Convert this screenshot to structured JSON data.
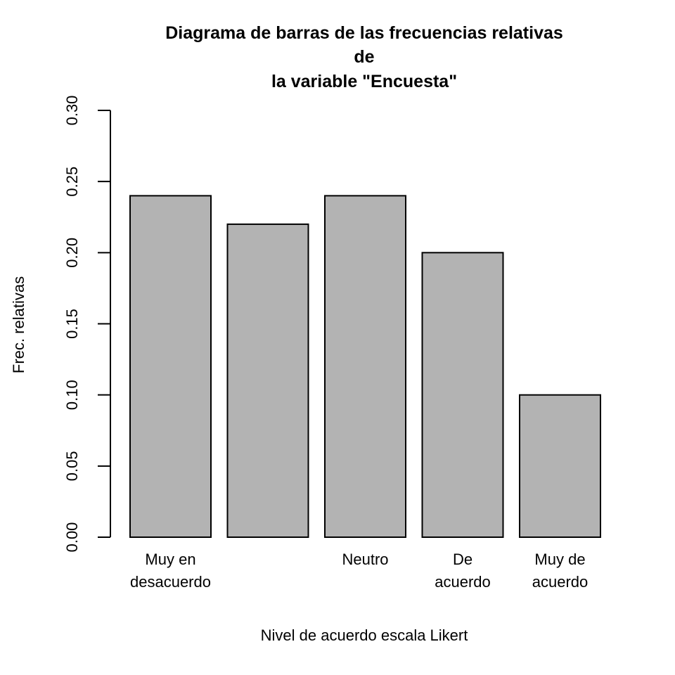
{
  "chart_data": {
    "type": "bar",
    "title_lines": [
      "Diagrama de barras de las frecuencias relativas",
      "de",
      "la variable \"Encuesta\""
    ],
    "xlabel": "Nivel de acuerdo escala Likert",
    "ylabel": "Frec. relativas",
    "categories": [
      [
        "Muy en",
        "desacuerdo"
      ],
      [],
      [
        "Neutro"
      ],
      [
        "De",
        "acuerdo"
      ],
      [
        "Muy de",
        "acuerdo"
      ]
    ],
    "values": [
      0.24,
      0.22,
      0.24,
      0.2,
      0.1
    ],
    "ylim": [
      0,
      0.3
    ],
    "yticks": [
      "0.00",
      "0.05",
      "0.10",
      "0.15",
      "0.20",
      "0.25",
      "0.30"
    ],
    "bar_color": "#b3b3b3",
    "grid": false,
    "legend": "none"
  }
}
